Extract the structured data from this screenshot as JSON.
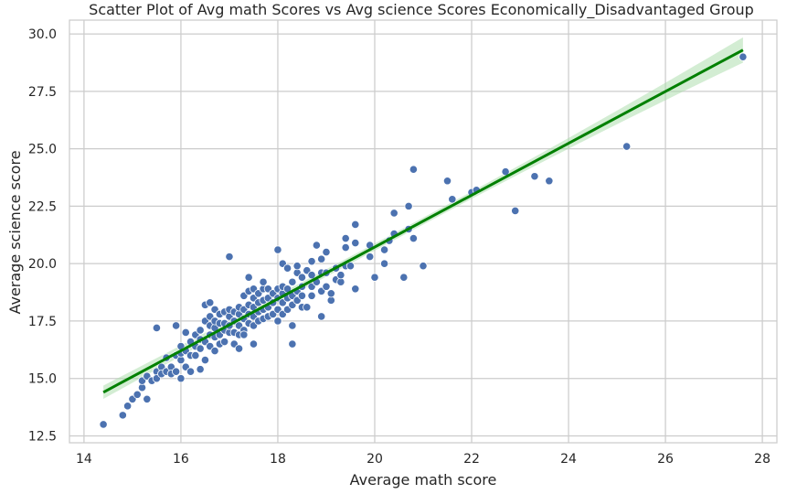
{
  "chart_data": {
    "type": "scatter",
    "title": "Scatter Plot of Avg math Scores vs  Avg science Scores  Economically_Disadvantaged Group",
    "xlabel": "Average math score",
    "ylabel": "Average science score",
    "xlim": [
      13.7,
      28.3
    ],
    "ylim": [
      12.2,
      30.6
    ],
    "xticks": [
      14,
      16,
      18,
      20,
      22,
      24,
      26,
      28
    ],
    "xtick_labels": [
      "14",
      "16",
      "18",
      "20",
      "22",
      "24",
      "26",
      "28"
    ],
    "yticks": [
      12.5,
      15.0,
      17.5,
      20.0,
      22.5,
      25.0,
      27.5,
      30.0
    ],
    "ytick_labels": [
      "12.5",
      "15.0",
      "17.5",
      "20.0",
      "22.5",
      "25.0",
      "27.5",
      "30.0"
    ],
    "grid": true,
    "colors": {
      "points": "#4c72b0",
      "fit_line": "#008000",
      "confidence_band": "#a8dba8",
      "grid": "#cccccc"
    },
    "regression": {
      "x": [
        14.4,
        27.6
      ],
      "y": [
        14.4,
        29.3
      ],
      "band_halfwidth": [
        0.15,
        0.55
      ]
    },
    "points": [
      [
        14.4,
        13.0
      ],
      [
        14.8,
        13.4
      ],
      [
        14.9,
        13.8
      ],
      [
        15.0,
        14.1
      ],
      [
        15.1,
        14.3
      ],
      [
        15.2,
        14.6
      ],
      [
        15.2,
        14.9
      ],
      [
        15.3,
        14.1
      ],
      [
        15.3,
        15.1
      ],
      [
        15.4,
        14.9
      ],
      [
        15.5,
        15.3
      ],
      [
        15.5,
        15.0
      ],
      [
        15.5,
        17.2
      ],
      [
        15.6,
        15.5
      ],
      [
        15.6,
        15.2
      ],
      [
        15.7,
        15.3
      ],
      [
        15.7,
        15.9
      ],
      [
        15.8,
        15.5
      ],
      [
        15.8,
        15.2
      ],
      [
        15.9,
        15.3
      ],
      [
        15.9,
        16.0
      ],
      [
        15.9,
        17.3
      ],
      [
        16.0,
        15.0
      ],
      [
        16.0,
        15.8
      ],
      [
        16.0,
        16.1
      ],
      [
        16.0,
        16.4
      ],
      [
        16.1,
        15.5
      ],
      [
        16.1,
        17.0
      ],
      [
        16.1,
        16.2
      ],
      [
        16.2,
        15.3
      ],
      [
        16.2,
        16.6
      ],
      [
        16.2,
        16.0
      ],
      [
        16.3,
        16.9
      ],
      [
        16.3,
        16.4
      ],
      [
        16.3,
        16.0
      ],
      [
        16.4,
        15.4
      ],
      [
        16.4,
        16.7
      ],
      [
        16.4,
        17.1
      ],
      [
        16.4,
        16.3
      ],
      [
        16.5,
        15.8
      ],
      [
        16.5,
        16.6
      ],
      [
        16.5,
        17.5
      ],
      [
        16.5,
        18.2
      ],
      [
        16.6,
        16.4
      ],
      [
        16.6,
        16.9
      ],
      [
        16.6,
        17.3
      ],
      [
        16.6,
        17.7
      ],
      [
        16.6,
        18.3
      ],
      [
        16.7,
        16.2
      ],
      [
        16.7,
        16.8
      ],
      [
        16.7,
        17.2
      ],
      [
        16.7,
        17.5
      ],
      [
        16.7,
        18.0
      ],
      [
        16.8,
        16.5
      ],
      [
        16.8,
        16.9
      ],
      [
        16.8,
        17.4
      ],
      [
        16.8,
        17.8
      ],
      [
        16.9,
        16.6
      ],
      [
        16.9,
        17.1
      ],
      [
        16.9,
        17.4
      ],
      [
        16.9,
        17.9
      ],
      [
        17.0,
        17.0
      ],
      [
        17.0,
        17.3
      ],
      [
        17.0,
        17.7
      ],
      [
        17.0,
        18.0
      ],
      [
        17.0,
        20.3
      ],
      [
        17.1,
        16.5
      ],
      [
        17.1,
        17.0
      ],
      [
        17.1,
        17.5
      ],
      [
        17.1,
        17.9
      ],
      [
        17.2,
        16.3
      ],
      [
        17.2,
        16.9
      ],
      [
        17.2,
        17.3
      ],
      [
        17.2,
        17.8
      ],
      [
        17.2,
        18.1
      ],
      [
        17.3,
        17.1
      ],
      [
        17.3,
        17.6
      ],
      [
        17.3,
        18.0
      ],
      [
        17.3,
        18.6
      ],
      [
        17.3,
        16.9
      ],
      [
        17.4,
        17.4
      ],
      [
        17.4,
        17.8
      ],
      [
        17.4,
        18.2
      ],
      [
        17.4,
        18.8
      ],
      [
        17.4,
        19.4
      ],
      [
        17.5,
        16.5
      ],
      [
        17.5,
        17.3
      ],
      [
        17.5,
        17.7
      ],
      [
        17.5,
        18.1
      ],
      [
        17.5,
        18.5
      ],
      [
        17.5,
        18.9
      ],
      [
        17.6,
        17.5
      ],
      [
        17.6,
        17.9
      ],
      [
        17.6,
        18.3
      ],
      [
        17.6,
        18.7
      ],
      [
        17.7,
        17.6
      ],
      [
        17.7,
        18.0
      ],
      [
        17.7,
        18.4
      ],
      [
        17.7,
        18.9
      ],
      [
        17.7,
        19.2
      ],
      [
        17.8,
        17.7
      ],
      [
        17.8,
        18.1
      ],
      [
        17.8,
        18.5
      ],
      [
        17.8,
        18.9
      ],
      [
        17.9,
        17.8
      ],
      [
        17.9,
        18.3
      ],
      [
        17.9,
        18.7
      ],
      [
        18.0,
        17.5
      ],
      [
        18.0,
        18.0
      ],
      [
        18.0,
        18.5
      ],
      [
        18.0,
        18.9
      ],
      [
        18.0,
        20.6
      ],
      [
        18.1,
        17.8
      ],
      [
        18.1,
        18.3
      ],
      [
        18.1,
        18.7
      ],
      [
        18.1,
        19.0
      ],
      [
        18.1,
        20.0
      ],
      [
        18.2,
        18.0
      ],
      [
        18.2,
        18.5
      ],
      [
        18.2,
        18.9
      ],
      [
        18.2,
        19.8
      ],
      [
        18.3,
        16.5
      ],
      [
        18.3,
        17.3
      ],
      [
        18.3,
        18.2
      ],
      [
        18.3,
        18.6
      ],
      [
        18.3,
        19.2
      ],
      [
        18.4,
        18.4
      ],
      [
        18.4,
        18.8
      ],
      [
        18.4,
        19.6
      ],
      [
        18.4,
        19.9
      ],
      [
        18.5,
        18.1
      ],
      [
        18.5,
        18.6
      ],
      [
        18.5,
        19.0
      ],
      [
        18.5,
        19.4
      ],
      [
        18.6,
        19.7
      ],
      [
        18.6,
        18.1
      ],
      [
        18.7,
        19.0
      ],
      [
        18.7,
        19.5
      ],
      [
        18.7,
        18.6
      ],
      [
        18.7,
        20.1
      ],
      [
        18.8,
        19.2
      ],
      [
        18.8,
        20.8
      ],
      [
        18.9,
        18.8
      ],
      [
        18.9,
        19.6
      ],
      [
        18.9,
        20.2
      ],
      [
        18.9,
        17.7
      ],
      [
        19.0,
        19.0
      ],
      [
        19.0,
        19.6
      ],
      [
        19.0,
        20.5
      ],
      [
        19.1,
        18.4
      ],
      [
        19.1,
        18.7
      ],
      [
        19.2,
        19.3
      ],
      [
        19.2,
        19.8
      ],
      [
        19.3,
        19.2
      ],
      [
        19.3,
        19.5
      ],
      [
        19.4,
        19.9
      ],
      [
        19.4,
        20.7
      ],
      [
        19.4,
        21.1
      ],
      [
        19.5,
        19.9
      ],
      [
        19.6,
        18.9
      ],
      [
        19.6,
        20.9
      ],
      [
        19.6,
        21.7
      ],
      [
        19.9,
        20.8
      ],
      [
        19.9,
        20.3
      ],
      [
        20.0,
        19.4
      ],
      [
        20.2,
        20.0
      ],
      [
        20.2,
        20.6
      ],
      [
        20.3,
        21.0
      ],
      [
        20.4,
        21.3
      ],
      [
        20.4,
        22.2
      ],
      [
        20.6,
        19.4
      ],
      [
        20.7,
        21.5
      ],
      [
        20.7,
        22.5
      ],
      [
        20.8,
        21.1
      ],
      [
        20.8,
        24.1
      ],
      [
        21.0,
        19.9
      ],
      [
        21.5,
        23.6
      ],
      [
        21.6,
        22.8
      ],
      [
        22.0,
        23.1
      ],
      [
        22.1,
        23.2
      ],
      [
        22.7,
        24.0
      ],
      [
        22.9,
        22.3
      ],
      [
        23.3,
        23.8
      ],
      [
        23.6,
        23.6
      ],
      [
        25.2,
        25.1
      ],
      [
        27.6,
        29.0
      ]
    ]
  }
}
